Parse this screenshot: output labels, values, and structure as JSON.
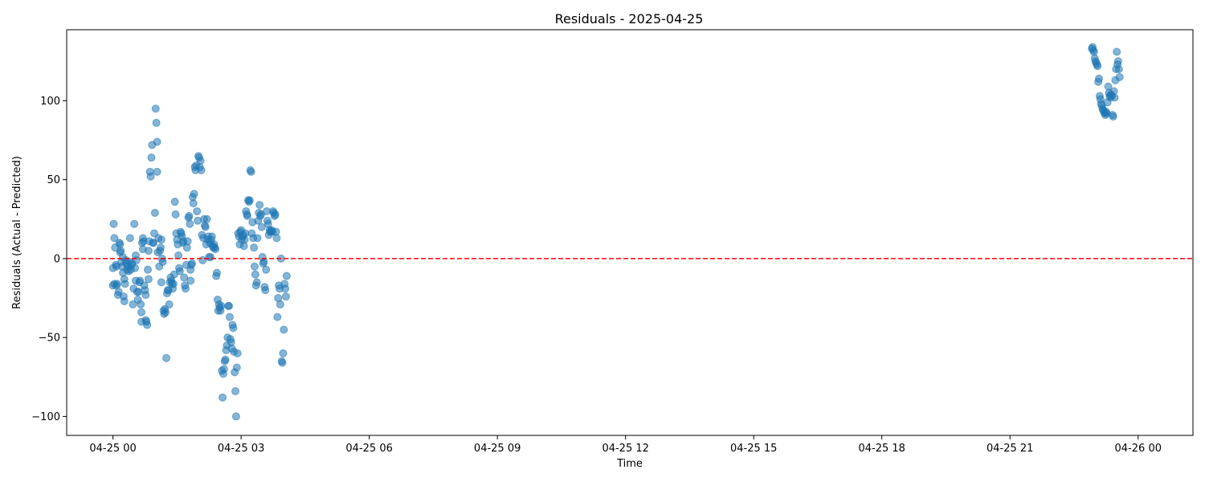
{
  "chart_data": {
    "type": "scatter",
    "title": "Residuals - 2025-04-25",
    "xlabel": "Time",
    "ylabel": "Residuals (Actual - Predicted)",
    "xlim": [
      "2025-04-24 22:55",
      "2025-04-26 01:17"
    ],
    "ylim": [
      -112,
      145
    ],
    "x_ticks": [
      "04-25 00",
      "04-25 03",
      "04-25 06",
      "04-25 09",
      "04-25 12",
      "04-25 15",
      "04-25 18",
      "04-25 21",
      "04-26 00"
    ],
    "y_ticks": [
      -100,
      -50,
      0,
      50,
      100
    ],
    "y_tick_labels": [
      "−100",
      "−50",
      "0",
      "50",
      "100"
    ],
    "reference_line": {
      "y": 0,
      "color": "#ff0000",
      "style": "dashed"
    },
    "grid": false,
    "marker_color": "#1f77b4",
    "marker_opacity": 0.55,
    "points": [
      [
        "2025-04-25 00:00",
        -17
      ],
      [
        "2025-04-25 00:00",
        -6
      ],
      [
        "2025-04-25 00:01",
        22
      ],
      [
        "2025-04-25 00:02",
        -16
      ],
      [
        "2025-04-25 00:02",
        13
      ],
      [
        "2025-04-25 00:03",
        7
      ],
      [
        "2025-04-25 00:04",
        -4
      ],
      [
        "2025-04-25 00:05",
        -17
      ],
      [
        "2025-04-25 00:05",
        -5
      ],
      [
        "2025-04-25 00:06",
        -16
      ],
      [
        "2025-04-25 00:07",
        -23
      ],
      [
        "2025-04-25 00:08",
        -21
      ],
      [
        "2025-04-25 00:09",
        10
      ],
      [
        "2025-04-25 00:10",
        9
      ],
      [
        "2025-04-25 00:10",
        4
      ],
      [
        "2025-04-25 00:11",
        5
      ],
      [
        "2025-04-25 00:12",
        -2
      ],
      [
        "2025-04-25 00:13",
        -5
      ],
      [
        "2025-04-25 00:14",
        -9
      ],
      [
        "2025-04-25 00:14",
        1
      ],
      [
        "2025-04-25 00:15",
        -24
      ],
      [
        "2025-04-25 00:16",
        -27
      ],
      [
        "2025-04-25 00:16",
        -13
      ],
      [
        "2025-04-25 00:17",
        -16
      ],
      [
        "2025-04-25 00:18",
        -1
      ],
      [
        "2025-04-25 00:19",
        -3
      ],
      [
        "2025-04-25 00:20",
        -7
      ],
      [
        "2025-04-25 00:21",
        -5
      ],
      [
        "2025-04-25 00:22",
        -8
      ],
      [
        "2025-04-25 00:23",
        -2
      ],
      [
        "2025-04-25 00:24",
        13
      ],
      [
        "2025-04-25 00:25",
        -7
      ],
      [
        "2025-04-25 00:26",
        -4
      ],
      [
        "2025-04-25 00:27",
        -3
      ],
      [
        "2025-04-25 00:28",
        -29
      ],
      [
        "2025-04-25 00:29",
        -19
      ],
      [
        "2025-04-25 00:30",
        22
      ],
      [
        "2025-04-25 00:31",
        -6
      ],
      [
        "2025-04-25 00:32",
        -14
      ],
      [
        "2025-04-25 00:32",
        2
      ],
      [
        "2025-04-25 00:33",
        -1
      ],
      [
        "2025-04-25 00:34",
        -21
      ],
      [
        "2025-04-25 00:35",
        -26
      ],
      [
        "2025-04-25 00:36",
        -21
      ],
      [
        "2025-04-25 00:37",
        -15
      ],
      [
        "2025-04-25 00:38",
        -14
      ],
      [
        "2025-04-25 00:39",
        -29
      ],
      [
        "2025-04-25 00:40",
        -34
      ],
      [
        "2025-04-25 00:40",
        -40
      ],
      [
        "2025-04-25 00:41",
        10
      ],
      [
        "2025-04-25 00:42",
        6
      ],
      [
        "2025-04-25 00:42",
        13
      ],
      [
        "2025-04-25 00:43",
        11
      ],
      [
        "2025-04-25 00:44",
        -17
      ],
      [
        "2025-04-25 00:45",
        -20
      ],
      [
        "2025-04-25 00:46",
        -23
      ],
      [
        "2025-04-25 00:46",
        -39
      ],
      [
        "2025-04-25 00:47",
        -40
      ],
      [
        "2025-04-25 00:48",
        -42
      ],
      [
        "2025-04-25 00:49",
        -7
      ],
      [
        "2025-04-25 00:50",
        -13
      ],
      [
        "2025-04-25 00:50",
        5
      ],
      [
        "2025-04-25 00:51",
        11
      ],
      [
        "2025-04-25 00:52",
        55
      ],
      [
        "2025-04-25 00:53",
        52
      ],
      [
        "2025-04-25 00:54",
        64
      ],
      [
        "2025-04-25 00:55",
        72
      ],
      [
        "2025-04-25 00:56",
        10
      ],
      [
        "2025-04-25 00:57",
        10
      ],
      [
        "2025-04-25 00:58",
        16
      ],
      [
        "2025-04-25 00:59",
        29
      ],
      [
        "2025-04-25 01:00",
        95
      ],
      [
        "2025-04-25 01:01",
        86
      ],
      [
        "2025-04-25 01:02",
        74
      ],
      [
        "2025-04-25 01:02",
        55
      ],
      [
        "2025-04-25 01:03",
        4
      ],
      [
        "2025-04-25 01:04",
        13
      ],
      [
        "2025-04-25 01:05",
        -5
      ],
      [
        "2025-04-25 01:06",
        5
      ],
      [
        "2025-04-25 01:07",
        7
      ],
      [
        "2025-04-25 01:08",
        12
      ],
      [
        "2025-04-25 01:08",
        -15
      ],
      [
        "2025-04-25 01:09",
        0
      ],
      [
        "2025-04-25 01:10",
        -2
      ],
      [
        "2025-04-25 01:11",
        -33
      ],
      [
        "2025-04-25 01:12",
        -35
      ],
      [
        "2025-04-25 01:13",
        -32
      ],
      [
        "2025-04-25 01:14",
        -34
      ],
      [
        "2025-04-25 01:15",
        -63
      ],
      [
        "2025-04-25 01:16",
        -22
      ],
      [
        "2025-04-25 01:17",
        -20
      ],
      [
        "2025-04-25 01:18",
        -20
      ],
      [
        "2025-04-25 01:19",
        -29
      ],
      [
        "2025-04-25 01:20",
        -15
      ],
      [
        "2025-04-25 01:21",
        -12
      ],
      [
        "2025-04-25 01:22",
        -14
      ],
      [
        "2025-04-25 01:23",
        -16
      ],
      [
        "2025-04-25 01:24",
        -19
      ],
      [
        "2025-04-25 01:25",
        -16
      ],
      [
        "2025-04-25 01:26",
        -10
      ],
      [
        "2025-04-25 01:27",
        36
      ],
      [
        "2025-04-25 01:28",
        28
      ],
      [
        "2025-04-25 01:29",
        16
      ],
      [
        "2025-04-25 01:30",
        12
      ],
      [
        "2025-04-25 01:31",
        9
      ],
      [
        "2025-04-25 01:32",
        2
      ],
      [
        "2025-04-25 01:33",
        -6
      ],
      [
        "2025-04-25 01:34",
        -8
      ],
      [
        "2025-04-25 01:35",
        17
      ],
      [
        "2025-04-25 01:36",
        16
      ],
      [
        "2025-04-25 01:37",
        14
      ],
      [
        "2025-04-25 01:38",
        10
      ],
      [
        "2025-04-25 01:39",
        11
      ],
      [
        "2025-04-25 01:40",
        -12
      ],
      [
        "2025-04-25 01:41",
        -17
      ],
      [
        "2025-04-25 01:42",
        -19
      ],
      [
        "2025-04-25 01:43",
        -4
      ],
      [
        "2025-04-25 01:44",
        7
      ],
      [
        "2025-04-25 01:45",
        11
      ],
      [
        "2025-04-25 01:46",
        26
      ],
      [
        "2025-04-25 01:47",
        27
      ],
      [
        "2025-04-25 01:48",
        22
      ],
      [
        "2025-04-25 01:49",
        -7
      ],
      [
        "2025-04-25 01:49",
        -14
      ],
      [
        "2025-04-25 01:50",
        -4
      ],
      [
        "2025-04-25 01:51",
        -3
      ],
      [
        "2025-04-25 01:52",
        39
      ],
      [
        "2025-04-25 01:53",
        35
      ],
      [
        "2025-04-25 01:54",
        41
      ],
      [
        "2025-04-25 01:55",
        58
      ],
      [
        "2025-04-25 01:56",
        56
      ],
      [
        "2025-04-25 01:57",
        59
      ],
      [
        "2025-04-25 01:58",
        30
      ],
      [
        "2025-04-25 01:59",
        24
      ],
      [
        "2025-04-25 02:00",
        65
      ],
      [
        "2025-04-25 02:01",
        64
      ],
      [
        "2025-04-25 02:02",
        58
      ],
      [
        "2025-04-25 02:03",
        62
      ],
      [
        "2025-04-25 02:04",
        56
      ],
      [
        "2025-04-25 02:05",
        15
      ],
      [
        "2025-04-25 02:06",
        -1
      ],
      [
        "2025-04-25 02:07",
        13
      ],
      [
        "2025-04-25 02:08",
        25
      ],
      [
        "2025-04-25 02:09",
        21
      ],
      [
        "2025-04-25 02:10",
        20
      ],
      [
        "2025-04-25 02:11",
        9
      ],
      [
        "2025-04-25 02:12",
        25
      ],
      [
        "2025-04-25 02:13",
        12
      ],
      [
        "2025-04-25 02:14",
        14
      ],
      [
        "2025-04-25 02:15",
        1
      ],
      [
        "2025-04-25 02:16",
        10
      ],
      [
        "2025-04-25 02:17",
        1
      ],
      [
        "2025-04-25 02:18",
        12
      ],
      [
        "2025-04-25 02:19",
        14
      ],
      [
        "2025-04-25 02:20",
        8
      ],
      [
        "2025-04-25 02:21",
        7
      ],
      [
        "2025-04-25 02:22",
        9
      ],
      [
        "2025-04-25 02:23",
        7
      ],
      [
        "2025-04-25 02:24",
        6
      ],
      [
        "2025-04-25 02:25",
        -11
      ],
      [
        "2025-04-25 02:26",
        -9
      ],
      [
        "2025-04-25 02:27",
        -26
      ],
      [
        "2025-04-25 02:28",
        -33
      ],
      [
        "2025-04-25 02:29",
        -29
      ],
      [
        "2025-04-25 02:30",
        -31
      ],
      [
        "2025-04-25 02:31",
        -33
      ],
      [
        "2025-04-25 02:32",
        -30
      ],
      [
        "2025-04-25 02:33",
        -71
      ],
      [
        "2025-04-25 02:34",
        -88
      ],
      [
        "2025-04-25 02:35",
        -73
      ],
      [
        "2025-04-25 02:36",
        -70
      ],
      [
        "2025-04-25 02:37",
        -65
      ],
      [
        "2025-04-25 02:38",
        -64
      ],
      [
        "2025-04-25 02:39",
        -58
      ],
      [
        "2025-04-25 02:40",
        -55
      ],
      [
        "2025-04-25 02:41",
        -50
      ],
      [
        "2025-04-25 02:42",
        -30
      ],
      [
        "2025-04-25 02:43",
        -30
      ],
      [
        "2025-04-25 02:44",
        -37
      ],
      [
        "2025-04-25 02:45",
        -51
      ],
      [
        "2025-04-25 02:46",
        -53
      ],
      [
        "2025-04-25 02:47",
        -57
      ],
      [
        "2025-04-25 02:48",
        -42
      ],
      [
        "2025-04-25 02:49",
        -44
      ],
      [
        "2025-04-25 02:50",
        -59
      ],
      [
        "2025-04-25 02:51",
        -72
      ],
      [
        "2025-04-25 02:52",
        -84
      ],
      [
        "2025-04-25 02:53",
        -100
      ],
      [
        "2025-04-25 02:54",
        -69
      ],
      [
        "2025-04-25 02:55",
        -60
      ],
      [
        "2025-04-25 02:56",
        16
      ],
      [
        "2025-04-25 02:57",
        14
      ],
      [
        "2025-04-25 02:58",
        9
      ],
      [
        "2025-04-25 02:59",
        17
      ],
      [
        "2025-04-25 03:00",
        18
      ],
      [
        "2025-04-25 03:01",
        12
      ],
      [
        "2025-04-25 03:02",
        14
      ],
      [
        "2025-04-25 03:03",
        15
      ],
      [
        "2025-04-25 03:04",
        8
      ],
      [
        "2025-04-25 03:05",
        12
      ],
      [
        "2025-04-25 03:06",
        16
      ],
      [
        "2025-04-25 03:07",
        30
      ],
      [
        "2025-04-25 03:08",
        28
      ],
      [
        "2025-04-25 03:09",
        27
      ],
      [
        "2025-04-25 03:10",
        37
      ],
      [
        "2025-04-25 03:11",
        36
      ],
      [
        "2025-04-25 03:12",
        37
      ],
      [
        "2025-04-25 03:13",
        56
      ],
      [
        "2025-04-25 03:14",
        55
      ],
      [
        "2025-04-25 03:15",
        16
      ],
      [
        "2025-04-25 03:16",
        23
      ],
      [
        "2025-04-25 03:17",
        13
      ],
      [
        "2025-04-25 03:18",
        7
      ],
      [
        "2025-04-25 03:19",
        -5
      ],
      [
        "2025-04-25 03:20",
        -10
      ],
      [
        "2025-04-25 03:21",
        -17
      ],
      [
        "2025-04-25 03:22",
        -15
      ],
      [
        "2025-04-25 03:23",
        13
      ],
      [
        "2025-04-25 03:24",
        24
      ],
      [
        "2025-04-25 03:25",
        29
      ],
      [
        "2025-04-25 03:26",
        34
      ],
      [
        "2025-04-25 03:27",
        27
      ],
      [
        "2025-04-25 03:28",
        28
      ],
      [
        "2025-04-25 03:29",
        20
      ],
      [
        "2025-04-25 03:30",
        1
      ],
      [
        "2025-04-25 03:31",
        -3
      ],
      [
        "2025-04-25 03:32",
        -2
      ],
      [
        "2025-04-25 03:33",
        -18
      ],
      [
        "2025-04-25 03:34",
        -20
      ],
      [
        "2025-04-25 03:35",
        -7
      ],
      [
        "2025-04-25 03:36",
        30
      ],
      [
        "2025-04-25 03:37",
        24
      ],
      [
        "2025-04-25 03:38",
        22
      ],
      [
        "2025-04-25 03:39",
        15
      ],
      [
        "2025-04-25 03:40",
        18
      ],
      [
        "2025-04-25 03:41",
        17
      ],
      [
        "2025-04-25 03:42",
        17
      ],
      [
        "2025-04-25 03:43",
        18
      ],
      [
        "2025-04-25 03:44",
        17
      ],
      [
        "2025-04-25 03:45",
        30
      ],
      [
        "2025-04-25 03:46",
        29
      ],
      [
        "2025-04-25 03:47",
        27
      ],
      [
        "2025-04-25 03:48",
        28
      ],
      [
        "2025-04-25 03:49",
        17
      ],
      [
        "2025-04-25 03:50",
        13
      ],
      [
        "2025-04-25 03:51",
        -37
      ],
      [
        "2025-04-25 03:52",
        -25
      ],
      [
        "2025-04-25 03:53",
        -17
      ],
      [
        "2025-04-25 03:54",
        -19
      ],
      [
        "2025-04-25 03:55",
        -29
      ],
      [
        "2025-04-25 03:56",
        0
      ],
      [
        "2025-04-25 03:57",
        -65
      ],
      [
        "2025-04-25 03:58",
        -66
      ],
      [
        "2025-04-25 03:59",
        -60
      ],
      [
        "2025-04-25 04:00",
        -45
      ],
      [
        "2025-04-25 04:01",
        -16
      ],
      [
        "2025-04-25 04:02",
        -19
      ],
      [
        "2025-04-25 04:03",
        -24
      ],
      [
        "2025-04-25 04:04",
        -11
      ],
      [
        "2025-04-25 22:55",
        133
      ],
      [
        "2025-04-25 22:56",
        134
      ],
      [
        "2025-04-25 22:57",
        132
      ],
      [
        "2025-04-25 22:58",
        131
      ],
      [
        "2025-04-25 22:59",
        127
      ],
      [
        "2025-04-25 23:00",
        125
      ],
      [
        "2025-04-25 23:01",
        124
      ],
      [
        "2025-04-25 23:02",
        123
      ],
      [
        "2025-04-25 23:03",
        122
      ],
      [
        "2025-04-25 23:04",
        112
      ],
      [
        "2025-04-25 23:05",
        114
      ],
      [
        "2025-04-25 23:06",
        103
      ],
      [
        "2025-04-25 23:07",
        101
      ],
      [
        "2025-04-25 23:08",
        98
      ],
      [
        "2025-04-25 23:09",
        97
      ],
      [
        "2025-04-25 23:10",
        95
      ],
      [
        "2025-04-25 23:11",
        94
      ],
      [
        "2025-04-25 23:12",
        93
      ],
      [
        "2025-04-25 23:13",
        92
      ],
      [
        "2025-04-25 23:14",
        91
      ],
      [
        "2025-04-25 23:15",
        93
      ],
      [
        "2025-04-25 23:16",
        92
      ],
      [
        "2025-04-25 23:17",
        99
      ],
      [
        "2025-04-25 23:18",
        109
      ],
      [
        "2025-04-25 23:19",
        105
      ],
      [
        "2025-04-25 23:20",
        103
      ],
      [
        "2025-04-25 23:21",
        102
      ],
      [
        "2025-04-25 23:22",
        104
      ],
      [
        "2025-04-25 23:23",
        103
      ],
      [
        "2025-04-25 23:24",
        91
      ],
      [
        "2025-04-25 23:25",
        90
      ],
      [
        "2025-04-25 23:26",
        106
      ],
      [
        "2025-04-25 23:27",
        102
      ],
      [
        "2025-04-25 23:28",
        113
      ],
      [
        "2025-04-25 23:29",
        120
      ],
      [
        "2025-04-25 23:30",
        131
      ],
      [
        "2025-04-25 23:31",
        123
      ],
      [
        "2025-04-25 23:32",
        125
      ],
      [
        "2025-04-25 23:33",
        120
      ],
      [
        "2025-04-25 23:34",
        115
      ]
    ]
  }
}
